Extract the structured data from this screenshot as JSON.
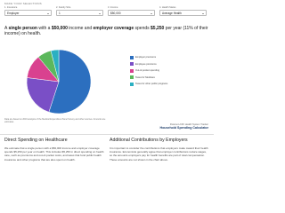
{
  "selections": {
    "title": "MAKE YOUR SELECTIONS",
    "fields": [
      {
        "label": "1. Insurance",
        "value": "Employer"
      },
      {
        "label": "2. Family Size",
        "value": "1"
      },
      {
        "label": "3. Income",
        "value": "$50,000"
      },
      {
        "label": "4. Health Status",
        "value": "Average Health"
      }
    ]
  },
  "headline": [
    "A ",
    "single person",
    " with a ",
    "$50,000",
    " income and ",
    "employer coverage",
    " spends ",
    "$5,250",
    " per year (11% of their income) on health."
  ],
  "chart_data": {
    "type": "pie",
    "series": [
      {
        "name": "Employer premiums",
        "color": "#2c6fbf",
        "values": [
          55
        ]
      },
      {
        "name": "Employee premiums",
        "color": "#7a4fc6",
        "values": [
          22
        ]
      },
      {
        "name": "Out-of-pocket spending",
        "color": "#d9418f",
        "values": [
          12
        ]
      },
      {
        "name": "Taxes for Medicare",
        "color": "#5cb85c",
        "values": [
          7
        ]
      },
      {
        "name": "Taxes for other public programs",
        "color": "#2bb0c2",
        "values": [
          4
        ]
      }
    ]
  },
  "footnote": "Data are based on 2019 analysis of the Medical Expenditure Panel Survey and other sources. Amounts are estimates.",
  "brand": {
    "org": "Peterson-KFF Health System Tracker",
    "title": "Household Spending Calculator"
  },
  "sections": [
    {
      "heading": "Direct Spending on Healthcare",
      "text": "We estimate that a single person with a $50,000 income and employer coverage spends $5,250 per year on health. This includes $5,250 in direct spending on health care, such as premiums and out-of-pocket costs, and taxes that fund public health insurance and other programs that are also spent on health."
    },
    {
      "heading": "Additional Contributions by Employers",
      "text": "It is important to consider the contributions that employers make toward their health insurance. Economists generally agree that employer contributions reduce wages, so the amounts employers pay for health benefits are part of total compensation. These amounts are not shown in the chart above."
    }
  ]
}
